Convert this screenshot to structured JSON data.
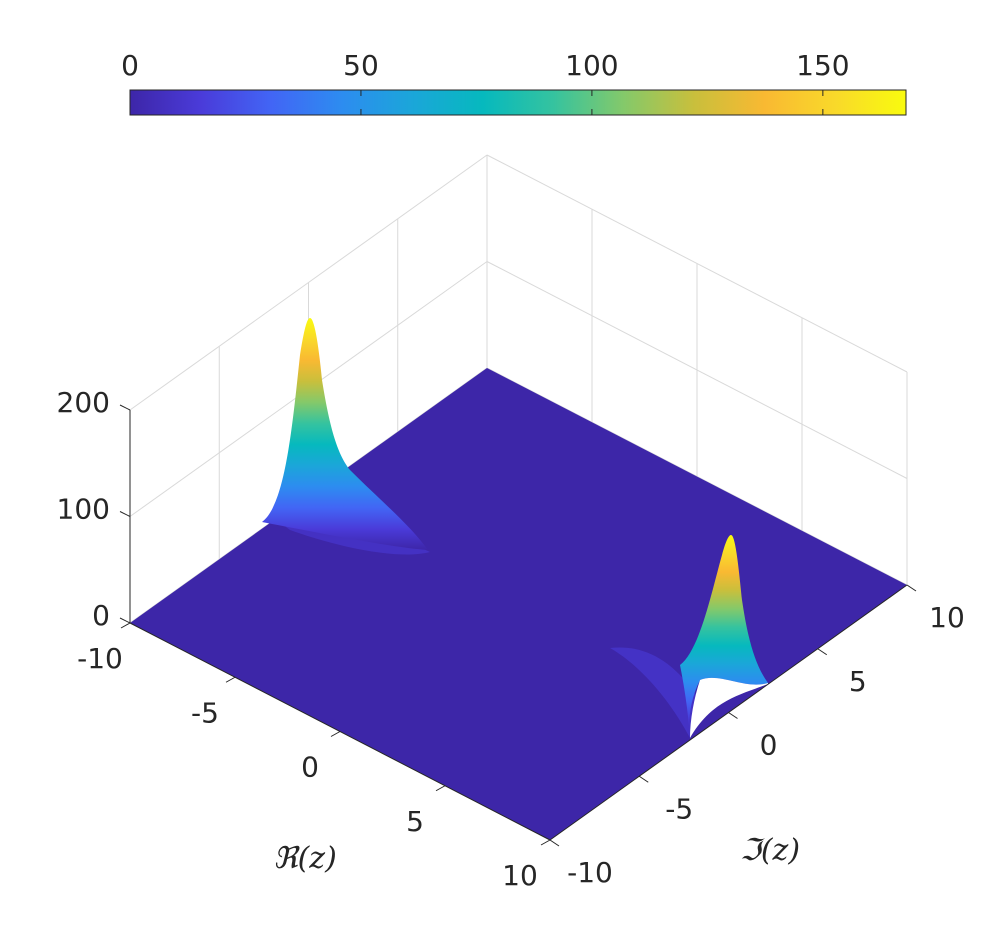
{
  "chart_data": {
    "type": "surface",
    "xlabel": "ℜ(z)",
    "ylabel": "ℑ(z)",
    "zlabel": "",
    "xlim": [
      -10,
      10
    ],
    "ylim": [
      -10,
      10
    ],
    "zlim": [
      0,
      200
    ],
    "x_ticks": [
      "-10",
      "-5",
      "0",
      "5",
      "10"
    ],
    "y_ticks": [
      "-10",
      "-5",
      "0",
      "5",
      "10"
    ],
    "z_ticks": [
      "0",
      "100",
      "200"
    ],
    "grid": true,
    "peaks": [
      {
        "x": -10,
        "y": 10,
        "height": 170
      },
      {
        "x": 10,
        "y": 0,
        "height": 125
      }
    ],
    "colorbar": {
      "placement": "top",
      "range": [
        0,
        168
      ],
      "ticks": [
        "0",
        "50",
        "100",
        "150"
      ],
      "colormap": "parula",
      "colors": [
        "#3d26a8",
        "#4a3bd9",
        "#4265f5",
        "#2d8cf0",
        "#1ba6d9",
        "#06b9be",
        "#35c39f",
        "#84c96a",
        "#c9bf3c",
        "#f9b932",
        "#f9d92a",
        "#f9fb0e"
      ]
    }
  }
}
